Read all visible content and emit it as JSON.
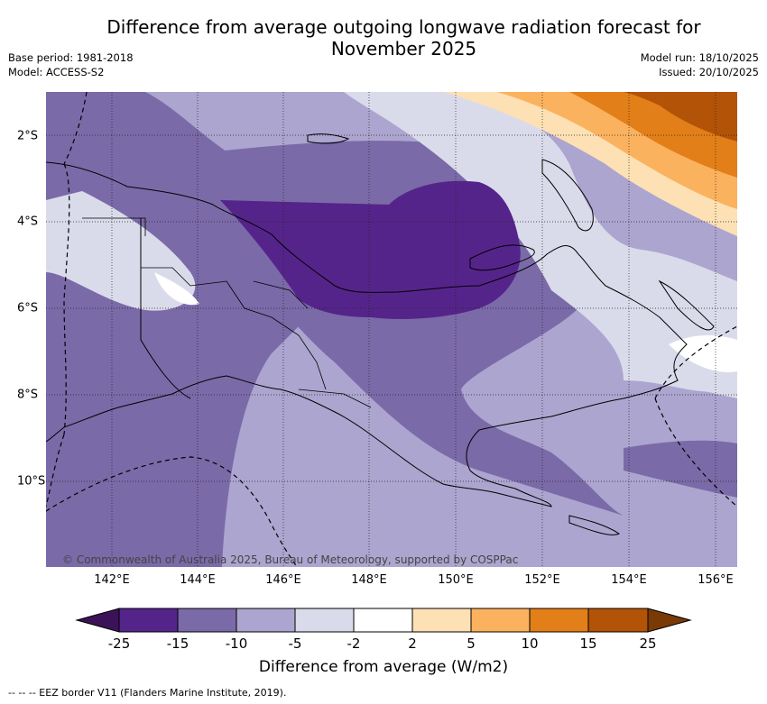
{
  "title_line1": "Difference from average outgoing longwave radiation forecast for",
  "title_line2": "November 2025",
  "base_period": "Base period: 1981-2018",
  "model": "Model: ACCESS-S2",
  "model_run": "Model run: 18/10/2025",
  "issued": "Issued: 20/10/2025",
  "lon_labels": [
    "142°E",
    "144°E",
    "146°E",
    "148°E",
    "150°E",
    "152°E",
    "154°E",
    "156°E"
  ],
  "lat_labels": [
    "2°S",
    "4°S",
    "6°S",
    "8°S",
    "10°S"
  ],
  "colorbar": {
    "ticks": [
      "-25",
      "-15",
      "-10",
      "-5",
      "-2",
      "2",
      "5",
      "10",
      "15",
      "25"
    ],
    "colors": [
      "#3b1258",
      "#55248a",
      "#7b6aa8",
      "#aca5cf",
      "#dadbea",
      "#ffffff",
      "#fde0b4",
      "#fbb25e",
      "#e27f18",
      "#b35308",
      "#7a3a05"
    ],
    "label": "Difference from average (W/m2)"
  },
  "copyright": "© Commonwealth of Australia 2025, Bureau of Meteorology, supported by COSPPac",
  "eez_note": "--  --  -- EEZ border V11 (Flanders Marine Institute, 2019)."
}
